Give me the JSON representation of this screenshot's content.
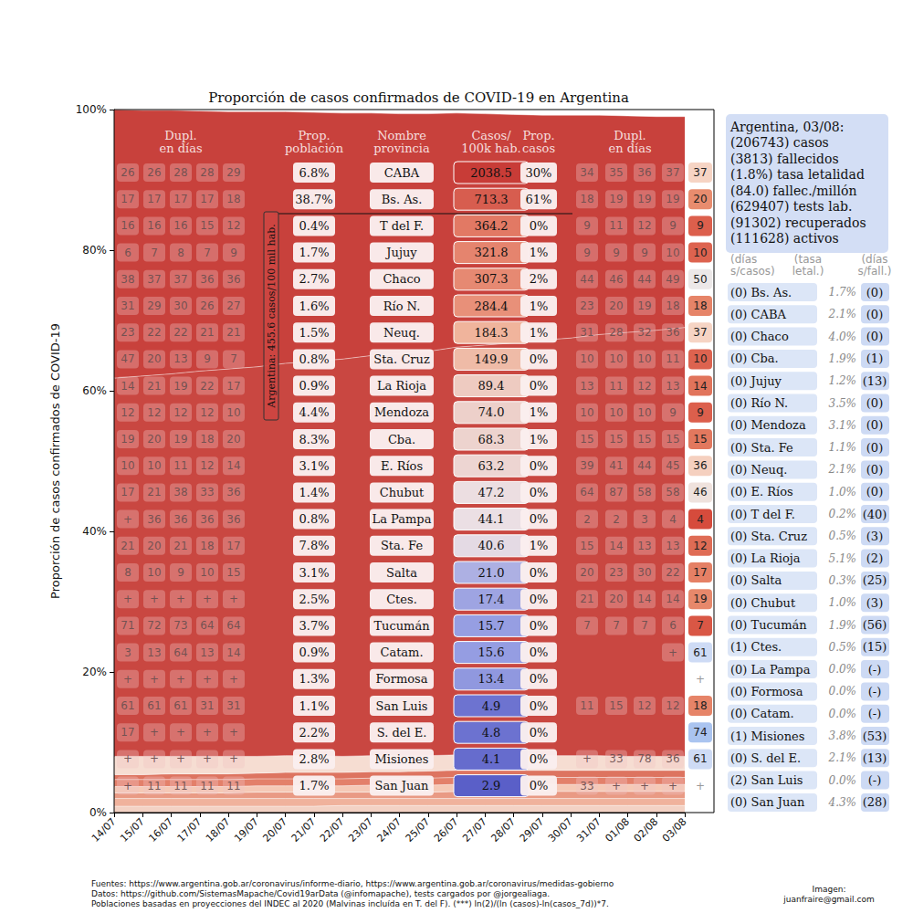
{
  "chart_data": {
    "type": "area",
    "title": "Proporción de casos confirmados de COVID-19 en Argentina",
    "y_label": "Proporción de casos confirmados de COVID-19",
    "x": [
      "14/07",
      "15/07",
      "16/07",
      "17/07",
      "18/07",
      "19/07",
      "20/07",
      "21/07",
      "22/07",
      "23/07",
      "24/07",
      "25/07",
      "26/07",
      "27/07",
      "28/07",
      "29/07",
      "30/07",
      "31/07",
      "01/08",
      "02/08",
      "03/08"
    ],
    "ylim": [
      0,
      100
    ],
    "yticks": [
      {
        "value": 0,
        "label": "0%"
      },
      {
        "value": 20,
        "label": "20%"
      },
      {
        "value": 40,
        "label": "40%"
      },
      {
        "value": 60,
        "label": "60%"
      },
      {
        "value": 80,
        "label": "80%"
      },
      {
        "value": 100,
        "label": "100%"
      }
    ],
    "stacked": true,
    "grid": false,
    "series": [
      {
        "name": "Sta. Fe",
        "color": "#f3d2c4",
        "values": [
          0.9,
          0.9,
          0.9,
          0.9,
          0.9,
          0.9,
          0.9,
          0.9,
          1.0,
          1.0,
          1.0,
          1.0,
          1.0,
          1.0,
          1.0,
          1.0,
          1.0,
          1.0,
          1.0,
          1.0,
          1.0
        ]
      },
      {
        "name": "Cba.",
        "color": "#f0b29c",
        "values": [
          1.1,
          1.1,
          1.1,
          1.1,
          1.1,
          1.1,
          1.1,
          1.1,
          1.0,
          1.0,
          1.0,
          1.0,
          1.0,
          1.0,
          1.0,
          1.0,
          1.0,
          1.0,
          1.0,
          1.0,
          1.0
        ]
      },
      {
        "name": "Mendoza",
        "color": "#e99a84",
        "values": [
          0.8,
          0.8,
          0.8,
          0.8,
          0.8,
          0.9,
          0.9,
          0.9,
          0.9,
          0.9,
          0.9,
          0.9,
          1.0,
          1.0,
          1.0,
          1.0,
          1.0,
          1.0,
          1.0,
          1.0,
          1.0
        ]
      },
      {
        "name": "Neuq.",
        "color": "#f5c9b6",
        "values": [
          0.9,
          0.9,
          0.9,
          0.9,
          0.9,
          0.9,
          0.9,
          0.9,
          0.9,
          1.0,
          1.0,
          1.0,
          1.0,
          1.0,
          1.0,
          1.0,
          1.0,
          1.0,
          1.0,
          1.0,
          1.0
        ]
      },
      {
        "name": "Río N.",
        "color": "#e3806a",
        "values": [
          1.0,
          1.0,
          1.0,
          1.0,
          1.0,
          1.0,
          1.0,
          1.0,
          1.0,
          1.0,
          1.0,
          1.0,
          1.0,
          1.0,
          1.0,
          1.0,
          1.0,
          1.0,
          1.0,
          1.0,
          1.0
        ]
      },
      {
        "name": "Jujuy",
        "color": "#dd7460",
        "values": [
          0.7,
          0.7,
          0.8,
          0.8,
          0.8,
          0.8,
          0.9,
          0.9,
          0.9,
          0.9,
          0.9,
          1.0,
          1.0,
          1.0,
          1.0,
          1.0,
          1.0,
          1.0,
          1.0,
          1.0,
          1.0
        ]
      },
      {
        "name": "Chaco",
        "color": "#f6ddd2",
        "values": [
          2.6,
          2.6,
          2.5,
          2.5,
          2.5,
          2.4,
          2.4,
          2.4,
          2.3,
          2.3,
          2.3,
          2.2,
          2.2,
          2.2,
          2.1,
          2.1,
          2.1,
          2.1,
          2.0,
          2.0,
          2.0
        ]
      },
      {
        "name": "Bs. As.",
        "color": "#c94741",
        "values": [
          53.8,
          54.1,
          54.4,
          54.8,
          55.1,
          55.4,
          55.8,
          56.1,
          56.5,
          56.9,
          57.2,
          57.5,
          58.0,
          58.3,
          58.7,
          59.1,
          59.4,
          59.9,
          60.3,
          60.6,
          61.0
        ]
      },
      {
        "name": "CABA",
        "color": "#c8413c",
        "values": [
          38.2,
          37.8,
          37.5,
          37.0,
          36.6,
          36.3,
          35.8,
          35.4,
          35.0,
          34.5,
          34.1,
          33.8,
          33.3,
          32.9,
          32.5,
          32.0,
          31.7,
          31.2,
          30.8,
          30.4,
          30.0
        ]
      }
    ]
  },
  "table": {
    "headers": {
      "dupl_izq": "Dupl.\nen días",
      "poblacion": "Prop.\npoblación",
      "nombre": "Nombre\nprovincia",
      "casos": "Casos/\n100k hab.",
      "prop_casos": "Prop.\ncasos",
      "dupl_der": "Dupl.\nen días"
    },
    "rows": [
      {
        "dupl_izq": [
          26,
          26,
          28,
          28,
          29
        ],
        "poblacion": "6.8%",
        "nombre": "CABA",
        "casos": 2038.5,
        "prop_casos": "30%",
        "dupl_der": [
          34,
          35,
          36,
          37
        ],
        "dupl_ultimo": 37
      },
      {
        "dupl_izq": [
          17,
          17,
          17,
          17,
          18
        ],
        "poblacion": "38.7%",
        "nombre": "Bs. As.",
        "casos": 713.3,
        "prop_casos": "61%",
        "dupl_der": [
          18,
          19,
          19,
          19
        ],
        "dupl_ultimo": 20
      },
      {
        "dupl_izq": [
          16,
          16,
          16,
          15,
          12
        ],
        "poblacion": "0.4%",
        "nombre": "T del F.",
        "casos": 364.2,
        "prop_casos": "0%",
        "dupl_der": [
          9,
          11,
          12,
          9
        ],
        "dupl_ultimo": 9
      },
      {
        "dupl_izq": [
          6,
          7,
          8,
          7,
          9
        ],
        "poblacion": "1.7%",
        "nombre": "Jujuy",
        "casos": 321.8,
        "prop_casos": "1%",
        "dupl_der": [
          9,
          9,
          9,
          10
        ],
        "dupl_ultimo": 10
      },
      {
        "dupl_izq": [
          38,
          37,
          37,
          36,
          36
        ],
        "poblacion": "2.7%",
        "nombre": "Chaco",
        "casos": 307.3,
        "prop_casos": "2%",
        "dupl_der": [
          44,
          46,
          44,
          49
        ],
        "dupl_ultimo": 50
      },
      {
        "dupl_izq": [
          31,
          29,
          30,
          26,
          27
        ],
        "poblacion": "1.6%",
        "nombre": "Río N.",
        "casos": 284.4,
        "prop_casos": "1%",
        "dupl_der": [
          23,
          20,
          19,
          18
        ],
        "dupl_ultimo": 18
      },
      {
        "dupl_izq": [
          23,
          22,
          22,
          21,
          21
        ],
        "poblacion": "1.5%",
        "nombre": "Neuq.",
        "casos": 184.3,
        "prop_casos": "1%",
        "dupl_der": [
          31,
          28,
          32,
          36
        ],
        "dupl_ultimo": 37
      },
      {
        "dupl_izq": [
          47,
          20,
          13,
          9,
          7
        ],
        "poblacion": "0.8%",
        "nombre": "Sta. Cruz",
        "casos": 149.9,
        "prop_casos": "0%",
        "dupl_der": [
          10,
          10,
          10,
          11
        ],
        "dupl_ultimo": 10
      },
      {
        "dupl_izq": [
          14,
          21,
          19,
          22,
          17
        ],
        "poblacion": "0.9%",
        "nombre": "La Rioja",
        "casos": 89.4,
        "prop_casos": "0%",
        "dupl_der": [
          13,
          11,
          12,
          13
        ],
        "dupl_ultimo": 14
      },
      {
        "dupl_izq": [
          12,
          12,
          12,
          12,
          10
        ],
        "poblacion": "4.4%",
        "nombre": "Mendoza",
        "casos": 74.0,
        "prop_casos": "1%",
        "dupl_der": [
          10,
          10,
          10,
          9
        ],
        "dupl_ultimo": 9
      },
      {
        "dupl_izq": [
          19,
          20,
          19,
          18,
          20
        ],
        "poblacion": "8.3%",
        "nombre": "Cba.",
        "casos": 68.3,
        "prop_casos": "1%",
        "dupl_der": [
          15,
          15,
          15,
          15
        ],
        "dupl_ultimo": 15
      },
      {
        "dupl_izq": [
          10,
          10,
          11,
          12,
          14
        ],
        "poblacion": "3.1%",
        "nombre": "E. Ríos",
        "casos": 63.2,
        "prop_casos": "0%",
        "dupl_der": [
          39,
          41,
          44,
          45
        ],
        "dupl_ultimo": 36
      },
      {
        "dupl_izq": [
          17,
          21,
          38,
          33,
          36
        ],
        "poblacion": "1.4%",
        "nombre": "Chubut",
        "casos": 47.2,
        "prop_casos": "0%",
        "dupl_der": [
          64,
          87,
          58,
          58
        ],
        "dupl_ultimo": 46
      },
      {
        "dupl_izq": [
          "+",
          36,
          36,
          36,
          36
        ],
        "poblacion": "0.8%",
        "nombre": "La Pampa",
        "casos": 44.1,
        "prop_casos": "0%",
        "dupl_der": [
          2,
          2,
          3,
          4
        ],
        "dupl_ultimo": 4
      },
      {
        "dupl_izq": [
          21,
          20,
          21,
          18,
          17
        ],
        "poblacion": "7.8%",
        "nombre": "Sta. Fe",
        "casos": 40.6,
        "prop_casos": "1%",
        "dupl_der": [
          15,
          14,
          13,
          13
        ],
        "dupl_ultimo": 12
      },
      {
        "dupl_izq": [
          8,
          10,
          9,
          10,
          15
        ],
        "poblacion": "3.1%",
        "nombre": "Salta",
        "casos": 21.0,
        "prop_casos": "0%",
        "dupl_der": [
          20,
          23,
          30,
          22
        ],
        "dupl_ultimo": 17
      },
      {
        "dupl_izq": [
          "+",
          "+",
          "+",
          "+",
          "+"
        ],
        "poblacion": "2.5%",
        "nombre": "Ctes.",
        "casos": 17.4,
        "prop_casos": "0%",
        "dupl_der": [
          21,
          20,
          14,
          14
        ],
        "dupl_ultimo": 19
      },
      {
        "dupl_izq": [
          71,
          72,
          73,
          64,
          64
        ],
        "poblacion": "3.7%",
        "nombre": "Tucumán",
        "casos": 15.7,
        "prop_casos": "0%",
        "dupl_der": [
          7,
          7,
          7,
          6
        ],
        "dupl_ultimo": 7
      },
      {
        "dupl_izq": [
          3,
          13,
          64,
          13,
          14
        ],
        "poblacion": "0.9%",
        "nombre": "Catam.",
        "casos": 15.6,
        "prop_casos": "0%",
        "dupl_der": [
          null,
          null,
          null,
          "+"
        ],
        "dupl_ultimo": 61
      },
      {
        "dupl_izq": [
          "+",
          "+",
          "+",
          "+",
          "+"
        ],
        "poblacion": "1.3%",
        "nombre": "Formosa",
        "casos": 13.4,
        "prop_casos": "0%",
        "dupl_der": [
          null,
          null,
          null,
          null
        ],
        "dupl_ultimo": "+"
      },
      {
        "dupl_izq": [
          61,
          61,
          61,
          31,
          31
        ],
        "poblacion": "1.1%",
        "nombre": "San Luis",
        "casos": 4.9,
        "prop_casos": "0%",
        "dupl_der": [
          11,
          15,
          12,
          12
        ],
        "dupl_ultimo": 18
      },
      {
        "dupl_izq": [
          17,
          "+",
          "+",
          "+",
          "+"
        ],
        "poblacion": "2.2%",
        "nombre": "S. del E.",
        "casos": 4.8,
        "prop_casos": "0%",
        "dupl_der": [
          null,
          null,
          null,
          null
        ],
        "dupl_ultimo": 74
      },
      {
        "dupl_izq": [
          "+",
          "+",
          "+",
          "+",
          "+"
        ],
        "poblacion": "2.8%",
        "nombre": "Misiones",
        "casos": 4.1,
        "prop_casos": "0%",
        "dupl_der": [
          "+",
          33,
          78,
          36
        ],
        "dupl_ultimo": 61
      },
      {
        "dupl_izq": [
          "+",
          11,
          11,
          11,
          11
        ],
        "poblacion": "1.7%",
        "nombre": "San Juan",
        "casos": 2.9,
        "prop_casos": "0%",
        "dupl_der": [
          33,
          "+",
          "+",
          "+"
        ],
        "dupl_ultimo": "+"
      }
    ]
  },
  "annotation": "Argentina: 455.6 casos/100 mil hab.",
  "summary": [
    "Argentina, 03/08:",
    "(206743) casos",
    "(3813) fallecidos",
    "(1.8%) tasa letalidad",
    "(84.0) fallec./millón",
    "(629407) tests lab.",
    "(91302) recuperados",
    "(111628) activos"
  ],
  "list": {
    "headers": [
      "(días\ns/casos)",
      "(tasa\nletal.)",
      "(días\ns/fall.)"
    ],
    "rows": [
      [
        "(0) Bs. As.",
        "1.7%",
        "(0)"
      ],
      [
        "(0) CABA",
        "2.1%",
        "(0)"
      ],
      [
        "(0) Chaco",
        "4.0%",
        "(0)"
      ],
      [
        "(0) Cba.",
        "1.9%",
        "(1)"
      ],
      [
        "(0) Jujuy",
        "1.2%",
        "(13)"
      ],
      [
        "(0) Río N.",
        "3.5%",
        "(0)"
      ],
      [
        "(0) Mendoza",
        "3.1%",
        "(0)"
      ],
      [
        "(0) Sta. Fe",
        "1.1%",
        "(0)"
      ],
      [
        "(0) Neuq.",
        "2.1%",
        "(0)"
      ],
      [
        "(0) E. Ríos",
        "1.0%",
        "(0)"
      ],
      [
        "(0) T del F.",
        "0.2%",
        "(40)"
      ],
      [
        "(0) Sta. Cruz",
        "0.5%",
        "(3)"
      ],
      [
        "(0) La Rioja",
        "5.1%",
        "(2)"
      ],
      [
        "(0) Salta",
        "0.3%",
        "(25)"
      ],
      [
        "(0) Chubut",
        "1.0%",
        "(3)"
      ],
      [
        "(0) Tucumán",
        "1.9%",
        "(56)"
      ],
      [
        "(1) Ctes.",
        "0.5%",
        "(15)"
      ],
      [
        "(0) La Pampa",
        "0.0%",
        "(-)"
      ],
      [
        "(0) Formosa",
        "0.0%",
        "(-)"
      ],
      [
        "(0) Catam.",
        "0.0%",
        "(-)"
      ],
      [
        "(1) Misiones",
        "3.8%",
        "(53)"
      ],
      [
        "(0) S. del E.",
        "2.1%",
        "(13)"
      ],
      [
        "(2) San Luis",
        "0.0%",
        "(-)"
      ],
      [
        "(0) San Juan",
        "4.3%",
        "(28)"
      ]
    ]
  },
  "footer": [
    "Fuentes: https://www.argentina.gob.ar/coronavirus/informe-diario, https://www.argentina.gob.ar/coronavirus/medidas-gobierno",
    "Datos: https://github.com/SistemasMapache/Covid19arData (@infomapache), tests cargados por @jorgealiaga.",
    "Poblaciones basadas en proyecciones del INDEC al 2020 (Malvinas incluída en T. del F). (***) ln(2)/(ln (casos)-ln(casos_7d))*7."
  ],
  "credit": "Imagen:\njuanfraire@gmail.com"
}
